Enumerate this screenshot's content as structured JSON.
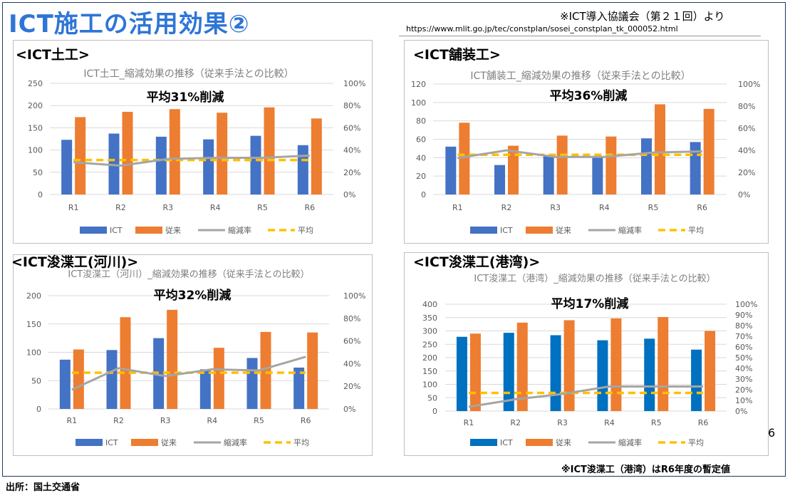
{
  "page": {
    "title": "ICT施工の活用効果②",
    "source_note": "※ICT導入協議会（第２１回）より",
    "source_url": "https://www.mlit.go.jp/tec/constplan/sosei_constplan_tk_000052.html",
    "page_number": "6",
    "footnote": "※ICT浚渫工（港湾）はR6年度の暫定値",
    "source_credit": "出所：国土交通省"
  },
  "colors": {
    "ict": "#4472c4",
    "ict_harbor": "#0070c0",
    "conventional": "#ed7d31",
    "reduction": "#a5a5a5",
    "average": "#ffc000",
    "grid": "#d9d9d9",
    "axis_text": "#595959"
  },
  "panels": [
    {
      "heading": "<ICT土工>"
    },
    {
      "heading": "<ICT舗装工>"
    },
    {
      "heading": "<ICT浚渫工(河川)>"
    },
    {
      "heading": "<ICT浚渫工(港湾)>"
    }
  ],
  "chart_data": [
    {
      "type": "bar",
      "title": "ICT土工_縮減効果の推移（従来手法との比較）",
      "annotation": "平均31%削減",
      "categories": [
        "R1",
        "R2",
        "R3",
        "R4",
        "R5",
        "R6"
      ],
      "ylim": [
        0,
        250
      ],
      "yticks": [
        0,
        50,
        100,
        150,
        200,
        250
      ],
      "y2lim": [
        0,
        1
      ],
      "y2ticks": [
        "0%",
        "20%",
        "40%",
        "60%",
        "80%",
        "100%"
      ],
      "series": [
        {
          "name": "ICT",
          "type": "bar",
          "axis": "left",
          "values": [
            123,
            137,
            130,
            124,
            132,
            111
          ]
        },
        {
          "name": "従来",
          "type": "bar",
          "axis": "left",
          "values": [
            174,
            186,
            192,
            184,
            196,
            171
          ]
        },
        {
          "name": "縮減率",
          "type": "line",
          "axis": "right",
          "values": [
            0.29,
            0.26,
            0.32,
            0.33,
            0.33,
            0.35
          ]
        },
        {
          "name": "平均",
          "type": "dashed-line",
          "axis": "right",
          "values": [
            0.31,
            0.31,
            0.31,
            0.31,
            0.31,
            0.31
          ]
        }
      ]
    },
    {
      "type": "bar",
      "title": "ICT舗装工_縮減効果の推移（従来手法との比較）",
      "annotation": "平均36%削減",
      "categories": [
        "R1",
        "R2",
        "R3",
        "R4",
        "R5",
        "R6"
      ],
      "ylim": [
        0,
        120
      ],
      "yticks": [
        0,
        20,
        40,
        60,
        80,
        100,
        120
      ],
      "y2lim": [
        0,
        1
      ],
      "y2ticks": [
        "0%",
        "20%",
        "40%",
        "60%",
        "80%",
        "100%"
      ],
      "series": [
        {
          "name": "ICT",
          "type": "bar",
          "axis": "left",
          "values": [
            52,
            32,
            43,
            41,
            61,
            57
          ]
        },
        {
          "name": "従来",
          "type": "bar",
          "axis": "left",
          "values": [
            78,
            53,
            64,
            63,
            98,
            93
          ]
        },
        {
          "name": "縮減率",
          "type": "line",
          "axis": "right",
          "values": [
            0.33,
            0.4,
            0.34,
            0.34,
            0.38,
            0.39
          ]
        },
        {
          "name": "平均",
          "type": "dashed-line",
          "axis": "right",
          "values": [
            0.36,
            0.36,
            0.36,
            0.36,
            0.36,
            0.36
          ]
        }
      ]
    },
    {
      "type": "bar",
      "title": "ICT浚渫工（河川）_縮減効果の推移（従来手法との比較）",
      "annotation": "平均32%削減",
      "categories": [
        "R1",
        "R2",
        "R3",
        "R4",
        "R5",
        "R6"
      ],
      "ylim": [
        0,
        200
      ],
      "yticks": [
        0,
        50,
        100,
        150,
        200
      ],
      "y2lim": [
        0,
        1
      ],
      "y2ticks": [
        "0%",
        "20%",
        "40%",
        "60%",
        "80%",
        "100%"
      ],
      "series": [
        {
          "name": "ICT",
          "type": "bar",
          "axis": "left",
          "values": [
            87,
            104,
            125,
            70,
            90,
            73
          ]
        },
        {
          "name": "従来",
          "type": "bar",
          "axis": "left",
          "values": [
            105,
            162,
            175,
            108,
            136,
            135
          ]
        },
        {
          "name": "縮減率",
          "type": "line",
          "axis": "right",
          "values": [
            0.17,
            0.36,
            0.29,
            0.35,
            0.34,
            0.46
          ]
        },
        {
          "name": "平均",
          "type": "dashed-line",
          "axis": "right",
          "values": [
            0.32,
            0.32,
            0.32,
            0.32,
            0.32,
            0.32
          ]
        }
      ]
    },
    {
      "type": "bar",
      "title": "ICT浚渫工（港湾）_縮減効果の推移（従来手法との比較）",
      "annotation": "平均17%削減",
      "categories": [
        "R1",
        "R2",
        "R3",
        "R4",
        "R5",
        "R6"
      ],
      "ylim": [
        0,
        400
      ],
      "yticks": [
        0,
        50,
        100,
        150,
        200,
        250,
        300,
        350,
        400
      ],
      "y2lim": [
        0,
        1
      ],
      "y2ticks": [
        "0%",
        "10%",
        "20%",
        "30%",
        "40%",
        "50%",
        "60%",
        "70%",
        "80%",
        "90%",
        "100%"
      ],
      "series": [
        {
          "name": "ICT",
          "type": "bar",
          "axis": "left",
          "values": [
            278,
            293,
            284,
            265,
            271,
            230
          ]
        },
        {
          "name": "従来",
          "type": "bar",
          "axis": "left",
          "values": [
            290,
            331,
            340,
            347,
            352,
            300
          ]
        },
        {
          "name": "縮減率",
          "type": "line",
          "axis": "right",
          "values": [
            0.04,
            0.11,
            0.16,
            0.23,
            0.23,
            0.23
          ]
        },
        {
          "name": "平均",
          "type": "dashed-line",
          "axis": "right",
          "values": [
            0.17,
            0.17,
            0.17,
            0.17,
            0.17,
            0.17
          ]
        }
      ]
    }
  ]
}
